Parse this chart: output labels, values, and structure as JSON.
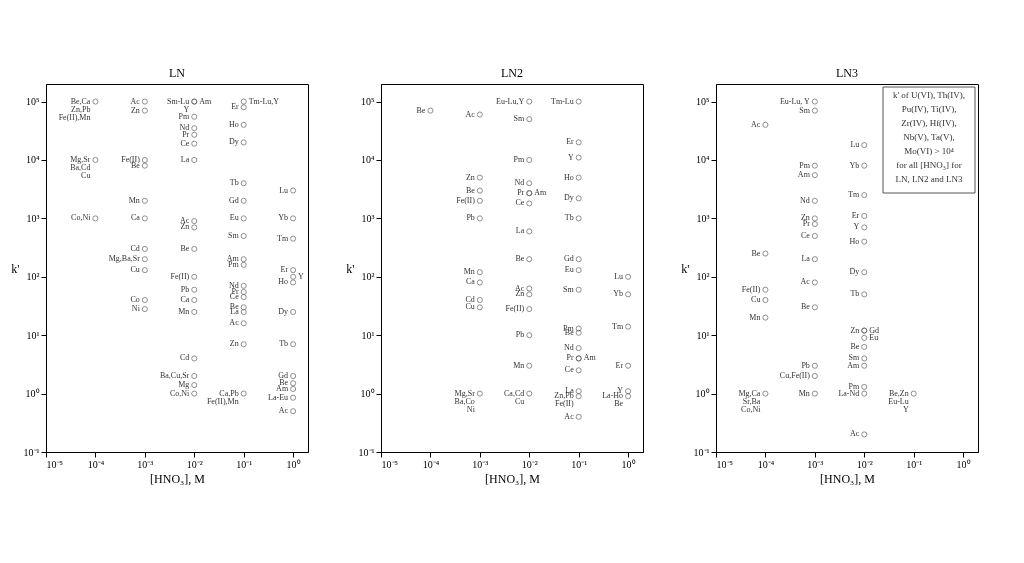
{
  "chart_data": [
    {
      "type": "scatter",
      "title": "LN",
      "xlabel": "[HNO₃], M",
      "ylabel": "k'",
      "log": "xy",
      "marker": "circle",
      "xlim": [
        1e-05,
        2
      ],
      "ylim": [
        0.1,
        200000
      ],
      "xticks": [
        {
          "value": 1e-05,
          "label": "10⁻⁵"
        },
        {
          "value": 0.0001,
          "label": "10⁻⁴"
        },
        {
          "value": 0.001,
          "label": "10⁻³"
        },
        {
          "value": 0.01,
          "label": "10⁻²"
        },
        {
          "value": 0.1,
          "label": "10⁻¹"
        },
        {
          "value": 1,
          "label": "10⁰"
        }
      ],
      "yticks": [
        {
          "value": 0.1,
          "label": "10⁻¹"
        },
        {
          "value": 1,
          "label": "10⁰"
        },
        {
          "value": 10,
          "label": "10¹"
        },
        {
          "value": 100,
          "label": "10²"
        },
        {
          "value": 1000,
          "label": "10³"
        },
        {
          "value": 10000,
          "label": "10⁴"
        },
        {
          "value": 100000,
          "label": "10⁵"
        }
      ],
      "series": [
        {
          "color": "#4d4d4d",
          "x": [
            0.0001,
            0.0001,
            0.0001,
            0.001,
            0.001,
            0.001,
            0.001,
            0.001,
            0.001,
            0.001,
            0.001,
            0.001,
            0.001,
            0.001,
            0.01,
            0.01,
            0.01,
            0.01,
            0.01,
            0.01,
            0.01,
            0.01,
            0.01,
            0.01,
            0.01,
            0.01,
            0.01,
            0.01,
            0.01,
            0.01,
            0.01,
            0.1,
            0.1,
            0.1,
            0.1,
            0.1,
            0.1,
            0.1,
            0.1,
            0.1,
            0.1,
            0.1,
            0.1,
            0.1,
            0.1,
            0.1,
            0.1,
            0.1,
            1,
            1,
            1,
            1,
            1,
            1,
            1,
            1,
            1,
            1,
            1,
            1
          ],
          "values": [
            100000,
            10000,
            1000,
            100000,
            70000,
            10000,
            8000,
            2000,
            1000,
            300,
            200,
            130,
            40,
            28,
            100000,
            55000,
            35000,
            27000,
            19000,
            10000,
            900,
            700,
            300,
            100,
            60,
            40,
            25,
            4,
            2,
            1.4,
            1,
            80000,
            40000,
            20000,
            4000,
            2000,
            1000,
            500,
            200,
            160,
            70,
            55,
            45,
            30,
            25,
            16,
            7,
            1,
            3000,
            1000,
            450,
            130,
            80,
            25,
            7,
            2,
            1.5,
            1.2,
            0.85,
            0.5
          ],
          "sizes": [
            1,
            1,
            1,
            1,
            1,
            1,
            1,
            1,
            1,
            1,
            1,
            1,
            1,
            1,
            1,
            1,
            1,
            1,
            1,
            1,
            1,
            1,
            1,
            1,
            1,
            1,
            1,
            1,
            1,
            1,
            1,
            1,
            1,
            1,
            1,
            1,
            1,
            1,
            1,
            1,
            1,
            1,
            1,
            1,
            1,
            1,
            1,
            1,
            1,
            1,
            1,
            1,
            1,
            1,
            1,
            1,
            1,
            1,
            1,
            1
          ],
          "value_labels": [
            "Be,Ca\nZn,Pb\nFe(II),Mn",
            "Mg,Sr\nBa,Cd\nCu",
            "Co,Ni",
            "Ac",
            "Zn",
            "Fe(II)",
            "Be",
            "Mn",
            "Ca",
            "Cd",
            "Mg,Ba,Sr",
            "Cu",
            "Co",
            "Ni",
            "Sm-Lu\nY",
            "Pm",
            "Nd",
            "Pr",
            "Ce",
            "La",
            "Ac",
            "Zn",
            "Be",
            "Fe(II)",
            "Pb",
            "Ca",
            "Mn",
            "Cd",
            "Ba,Cu,Sr",
            "Mg",
            "Co,Ni",
            "Er",
            "Ho",
            "Dy",
            "Tb",
            "Gd",
            "Eu",
            "Sm",
            "Am",
            "Pm",
            "Nd",
            "Pr",
            "Ce",
            "Be",
            "La",
            "Ac",
            "Zn",
            "Ca,Pb\nFe(II),Mn",
            "Lu",
            "Yb",
            "Tm",
            "Er",
            "Ho",
            "Dy",
            "Tb",
            "Gd",
            "Be",
            "Am",
            "La-Eu",
            "Ac"
          ]
        },
        {
          "color": "#4d4d4d",
          "x": [
            0.01,
            0.1,
            1
          ],
          "values": [
            100000,
            100000,
            100
          ],
          "value_labels": [
            "Am",
            "Tm-Lu,Y",
            "Y"
          ]
        }
      ]
    },
    {
      "type": "scatter",
      "title": "LN2",
      "xlabel": "[HNO₃], M",
      "ylabel": "k'",
      "log": "xy",
      "marker": "circle",
      "xlim": [
        1e-05,
        2
      ],
      "ylim": [
        0.1,
        200000
      ],
      "xticks": [
        {
          "value": 1e-05,
          "label": "10⁻⁵"
        },
        {
          "value": 0.0001,
          "label": "10⁻⁴"
        },
        {
          "value": 0.001,
          "label": "10⁻³"
        },
        {
          "value": 0.01,
          "label": "10⁻²"
        },
        {
          "value": 0.1,
          "label": "10⁻¹"
        },
        {
          "value": 1,
          "label": "10⁰"
        }
      ],
      "yticks": [
        {
          "value": 0.1,
          "label": "10⁻¹"
        },
        {
          "value": 1,
          "label": "10⁰"
        },
        {
          "value": 10,
          "label": "10¹"
        },
        {
          "value": 100,
          "label": "10²"
        },
        {
          "value": 1000,
          "label": "10³"
        },
        {
          "value": 10000,
          "label": "10⁴"
        },
        {
          "value": 100000,
          "label": "10⁵"
        }
      ],
      "series": [
        {
          "color": "#4d4d4d",
          "x": [
            0.0001,
            0.001,
            0.001,
            0.001,
            0.001,
            0.001,
            0.001,
            0.001,
            0.001,
            0.001,
            0.001,
            0.01,
            0.01,
            0.01,
            0.01,
            0.01,
            0.01,
            0.01,
            0.01,
            0.01,
            0.01,
            0.01,
            0.01,
            0.01,
            0.01,
            0.1,
            0.1,
            0.1,
            0.1,
            0.1,
            0.1,
            0.1,
            0.1,
            0.1,
            0.1,
            0.1,
            0.1,
            0.1,
            0.1,
            0.1,
            0.1,
            0.1,
            1,
            1,
            1,
            1,
            1,
            1
          ],
          "values": [
            70000,
            60000,
            5000,
            3000,
            2000,
            1000,
            120,
            80,
            40,
            30,
            1,
            100000,
            50000,
            10000,
            4000,
            2700,
            1800,
            600,
            200,
            63,
            50,
            28,
            10,
            3,
            1,
            100000,
            20000,
            11000,
            5000,
            2200,
            1000,
            200,
            130,
            60,
            13,
            11,
            6,
            4,
            2.5,
            1.1,
            0.9,
            0.4,
            100,
            50,
            14,
            3,
            1.1,
            0.9
          ],
          "sizes": [
            1,
            1,
            1,
            1,
            1,
            1,
            1,
            1,
            1,
            1,
            1,
            1,
            1,
            1,
            1,
            1,
            1,
            1,
            1,
            1,
            1,
            1,
            1,
            1,
            1,
            1,
            1,
            1,
            1,
            1,
            1,
            1,
            1,
            1,
            1,
            1,
            1,
            1,
            1,
            1,
            1,
            1,
            1,
            1,
            1,
            1,
            1,
            1
          ],
          "value_labels": [
            "Be",
            "Ac",
            "Zn",
            "Be",
            "Fe(II)",
            "Pb",
            "Mn",
            "Ca",
            "Cd",
            "Cu",
            "Mg,Sr\nBa,Co\nNi",
            "Eu-Lu,Y",
            "Sm",
            "Pm",
            "Nd",
            "Pr",
            "Ce",
            "La",
            "Be",
            "Ac",
            "Zn",
            "Fe(II)",
            "Pb",
            "Mn",
            "Ca,Cd\nCu",
            "Tm-Lu",
            "Er",
            "Y",
            "Ho",
            "Dy",
            "Tb",
            "Gd",
            "Eu",
            "Sm",
            "Pm",
            "Be",
            "Nd",
            "Pr",
            "Ce",
            "La",
            "Zn,Pb\nFe(II)",
            "Ac",
            "Lu",
            "Yb",
            "Tm",
            "Er",
            "Y",
            "La-Ho\nBe"
          ]
        },
        {
          "color": "#4d4d4d",
          "x": [
            0.01,
            0.1
          ],
          "values": [
            2700,
            4
          ],
          "value_labels": [
            "Am",
            "Am"
          ]
        }
      ]
    },
    {
      "type": "scatter",
      "title": "LN3",
      "xlabel": "[HNO₃], M",
      "ylabel": "k'",
      "log": "xy",
      "marker": "circle",
      "xlim": [
        1e-05,
        2
      ],
      "ylim": [
        0.1,
        200000
      ],
      "xticks": [
        {
          "value": 1e-05,
          "label": "10⁻⁵"
        },
        {
          "value": 0.0001,
          "label": "10⁻⁴"
        },
        {
          "value": 0.001,
          "label": "10⁻³"
        },
        {
          "value": 0.01,
          "label": "10⁻²"
        },
        {
          "value": 0.1,
          "label": "10⁻¹"
        },
        {
          "value": 1,
          "label": "10⁰"
        }
      ],
      "yticks": [
        {
          "value": 0.1,
          "label": "10⁻¹"
        },
        {
          "value": 1,
          "label": "10⁰"
        },
        {
          "value": 10,
          "label": "10¹"
        },
        {
          "value": 100,
          "label": "10²"
        },
        {
          "value": 1000,
          "label": "10³"
        },
        {
          "value": 10000,
          "label": "10⁴"
        },
        {
          "value": 100000,
          "label": "10⁵"
        }
      ],
      "annotations": [
        "k' of U(VI), Th(IV),\nPu(IV), Ti(IV),\nZr(IV), Hf(IV),\nNb(V), Ta(V),\nMo(VI) > 10⁴\nfor all [HNO₃] for\nLN, LN2 and LN3"
      ],
      "series": [
        {
          "color": "#4d4d4d",
          "x": [
            0.0001,
            0.0001,
            0.0001,
            0.0001,
            0.0001,
            0.0001,
            0.001,
            0.001,
            0.001,
            0.001,
            0.001,
            0.001,
            0.001,
            0.001,
            0.001,
            0.001,
            0.001,
            0.001,
            0.001,
            0.001,
            0.01,
            0.01,
            0.01,
            0.01,
            0.01,
            0.01,
            0.01,
            0.01,
            0.01,
            0.01,
            0.01,
            0.01,
            0.01,
            0.01,
            0.01,
            0.1
          ],
          "values": [
            40000,
            250,
            60,
            40,
            20,
            1,
            100000,
            70000,
            8000,
            5500,
            2000,
            1000,
            800,
            500,
            200,
            80,
            30,
            3,
            2,
            1,
            18000,
            8000,
            2500,
            1100,
            700,
            400,
            120,
            50,
            12,
            6.3,
            4,
            3,
            1.3,
            1,
            0.2,
            1
          ],
          "sizes": [
            1,
            1,
            1,
            1,
            1,
            1,
            1,
            1,
            1,
            1,
            1,
            1,
            1,
            1,
            1,
            1,
            1,
            1,
            1,
            1,
            1,
            1,
            1,
            1,
            1,
            1,
            1,
            1,
            1,
            1,
            1,
            1,
            1,
            1,
            1,
            1
          ],
          "value_labels": [
            "Ac",
            "Be",
            "Fe(II)",
            "Cu",
            "Mn",
            "Mg,Ca\nSr,Ba\nCo,Ni",
            "Eu-Lu, Y",
            "Sm",
            "Pm",
            "Am",
            "Nd",
            "Zn",
            "Pr",
            "Ce",
            "La",
            "Ac",
            "Be",
            "Pb",
            "Cu,Fe(II)",
            "Mn",
            "Lu",
            "Yb",
            "Tm",
            "Er",
            "Y",
            "Ho",
            "Dy",
            "Tb",
            "Zn",
            "Be",
            "Sm",
            "Am",
            "Pm",
            "La-Nd",
            "Ac",
            "Be,Zn\nEu-Lu\nY"
          ]
        },
        {
          "color": "#4d4d4d",
          "x": [
            0.01,
            0.01
          ],
          "values": [
            12,
            9
          ],
          "value_labels": [
            "Gd",
            "Eu"
          ]
        }
      ]
    }
  ]
}
